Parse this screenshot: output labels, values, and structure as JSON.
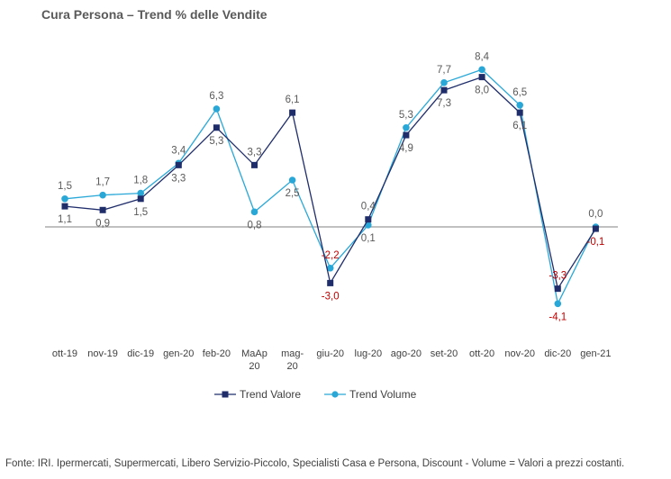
{
  "title": "Cura Persona –  Trend % delle Vendite",
  "footer": "Fonte: IRI. Ipermercati, Supermercati, Libero Servizio-Piccolo,  Specialisti Casa e Persona, Discount -  Volume =  Valori a prezzi  costanti.",
  "colors": {
    "valore": "#1f2d6b",
    "volume": "#29a8d8",
    "negative_label": "#c00000",
    "positive_label": "#595959",
    "axis": "#808080"
  },
  "chart_data": {
    "type": "line",
    "categories": [
      "ott-19",
      "nov-19",
      "dic-19",
      "gen-20",
      "feb-20",
      "MaAp 20",
      "mag-20",
      "giu-20",
      "lug-20",
      "ago-20",
      "set-20",
      "ott-20",
      "nov-20",
      "dic-20",
      "gen-21"
    ],
    "series": [
      {
        "name": "Trend Valore",
        "values": [
          1.1,
          0.9,
          1.5,
          3.3,
          5.3,
          3.3,
          6.1,
          -3.0,
          0.4,
          4.9,
          7.3,
          8.0,
          6.1,
          -3.3,
          -0.1
        ],
        "marker": "square"
      },
      {
        "name": "Trend Volume",
        "values": [
          1.5,
          1.7,
          1.8,
          3.4,
          6.3,
          0.8,
          2.5,
          -2.2,
          0.1,
          5.3,
          7.7,
          8.4,
          6.5,
          -4.1,
          0.0
        ],
        "marker": "circle"
      }
    ],
    "value_labels": {
      "Trend Valore": [
        "1,1",
        "0,9",
        "1,5",
        "3,3",
        "5,3",
        "3,3",
        "6,1",
        "-3,0",
        "0,4",
        "4,9",
        "7,3",
        "8,0",
        "6,1",
        "-3,3",
        "-0,1"
      ],
      "Trend Volume": [
        "1,5",
        "1,7",
        "1,8",
        "3,4",
        "6,3",
        "0,8",
        "2,5",
        "-2,2",
        "0,1",
        "5,3",
        "7,7",
        "8,4",
        "6,5",
        "-4,1",
        "0,0"
      ]
    },
    "ylim": [
      -5,
      10
    ],
    "grid": false,
    "legend_position": "bottom",
    "xlabel": "",
    "ylabel": ""
  }
}
